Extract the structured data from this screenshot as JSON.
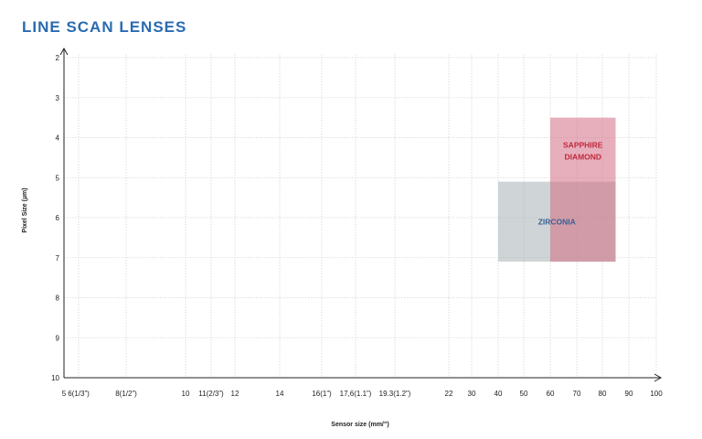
{
  "title": "LINE SCAN LENSES",
  "chart_data": {
    "type": "range-region",
    "title": "LINE SCAN LENSES",
    "xlabel": "Sensor size (mm/”)",
    "ylabel": "Pixel Size (µm)",
    "x_tick_labels": [
      "5",
      "6(1/3”)",
      "8(1/2”)",
      "10",
      "11(2/3”)",
      "12",
      "14",
      "16(1”)",
      "17,6(1.1”)",
      "19.3(1.2”)",
      "22",
      "30",
      "40",
      "50",
      "60",
      "70",
      "80",
      "90",
      "100"
    ],
    "y_tick_labels": [
      "2",
      "3",
      "4",
      "5",
      "6",
      "7",
      "8",
      "9",
      "10"
    ],
    "ylim": [
      2,
      10
    ],
    "y_inverted": true,
    "grid": true,
    "regions": [
      {
        "name": "ZIRCONIA",
        "label_lines": [
          "ZIRCONIA"
        ],
        "x_range": [
          40,
          85
        ],
        "y_range": [
          5.1,
          7.1
        ],
        "color": "#a7b3b4"
      },
      {
        "name": "SAPPHIRE DIAMOND",
        "label_lines": [
          "SAPPHIRE",
          "DIAMOND"
        ],
        "x_range": [
          60,
          85
        ],
        "y_range": [
          3.5,
          7.1
        ],
        "color": "#d36e84"
      }
    ],
    "colors": {
      "title": "#2a6bb0",
      "zirconia_label": "#3a5e96",
      "sapphire_label": "#c0283e",
      "grid": "#d6d6d6",
      "axis": "#222222"
    }
  }
}
